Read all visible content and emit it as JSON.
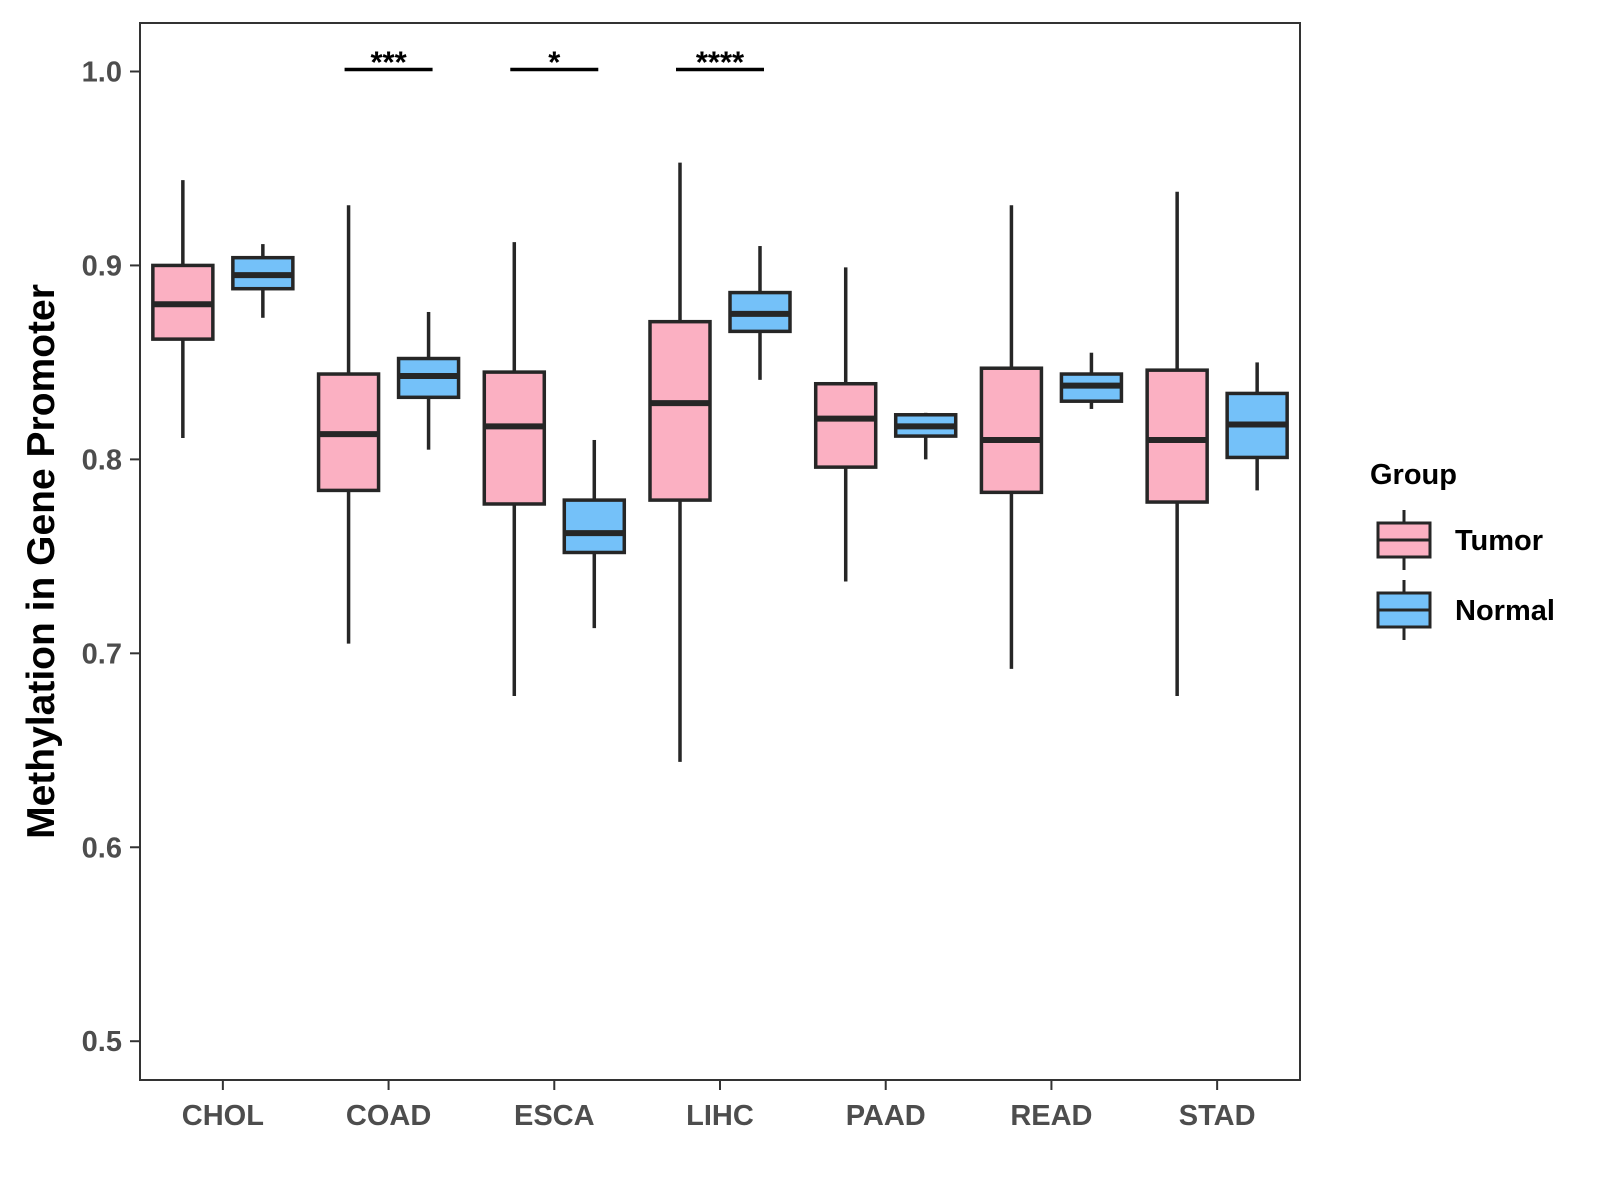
{
  "chart_data": {
    "type": "boxplot",
    "title": "",
    "xlabel": "",
    "ylabel": "Methylation in Gene Promoter",
    "ylim": [
      0.48,
      1.025
    ],
    "yticks": [
      "0.5",
      "0.6",
      "0.7",
      "0.8",
      "0.9",
      "1.0"
    ],
    "grid": false,
    "categories": [
      "CHOL",
      "COAD",
      "ESCA",
      "LIHC",
      "PAAD",
      "READ",
      "STAD"
    ],
    "legend": {
      "title": "Group",
      "position": "right",
      "entries": [
        "Tumor",
        "Normal"
      ]
    },
    "colors": {
      "Tumor": "#fbb0c2",
      "Normal": "#74c1f9",
      "outline": "#262626"
    },
    "series": [
      {
        "name": "Tumor",
        "boxes": [
          {
            "category": "CHOL",
            "min": 0.811,
            "q1": 0.862,
            "median": 0.88,
            "q3": 0.9,
            "max": 0.944
          },
          {
            "category": "COAD",
            "min": 0.705,
            "q1": 0.784,
            "median": 0.813,
            "q3": 0.844,
            "max": 0.931
          },
          {
            "category": "ESCA",
            "min": 0.678,
            "q1": 0.777,
            "median": 0.817,
            "q3": 0.845,
            "max": 0.912
          },
          {
            "category": "LIHC",
            "min": 0.644,
            "q1": 0.779,
            "median": 0.829,
            "q3": 0.871,
            "max": 0.953
          },
          {
            "category": "PAAD",
            "min": 0.737,
            "q1": 0.796,
            "median": 0.821,
            "q3": 0.839,
            "max": 0.899
          },
          {
            "category": "READ",
            "min": 0.692,
            "q1": 0.783,
            "median": 0.81,
            "q3": 0.847,
            "max": 0.931
          },
          {
            "category": "STAD",
            "min": 0.678,
            "q1": 0.778,
            "median": 0.81,
            "q3": 0.846,
            "max": 0.938
          }
        ]
      },
      {
        "name": "Normal",
        "boxes": [
          {
            "category": "CHOL",
            "min": 0.873,
            "q1": 0.888,
            "median": 0.895,
            "q3": 0.904,
            "max": 0.911
          },
          {
            "category": "COAD",
            "min": 0.805,
            "q1": 0.832,
            "median": 0.843,
            "q3": 0.852,
            "max": 0.876
          },
          {
            "category": "ESCA",
            "min": 0.713,
            "q1": 0.752,
            "median": 0.762,
            "q3": 0.779,
            "max": 0.81
          },
          {
            "category": "LIHC",
            "min": 0.841,
            "q1": 0.866,
            "median": 0.875,
            "q3": 0.886,
            "max": 0.91
          },
          {
            "category": "PAAD",
            "min": 0.8,
            "q1": 0.812,
            "median": 0.817,
            "q3": 0.823,
            "max": 0.824
          },
          {
            "category": "READ",
            "min": 0.826,
            "q1": 0.83,
            "median": 0.838,
            "q3": 0.844,
            "max": 0.855
          },
          {
            "category": "STAD",
            "min": 0.784,
            "q1": 0.801,
            "median": 0.818,
            "q3": 0.834,
            "max": 0.85
          }
        ]
      }
    ],
    "annotations": [
      {
        "category": "COAD",
        "label": "***",
        "y": 1.001
      },
      {
        "category": "ESCA",
        "label": "*",
        "y": 1.001
      },
      {
        "category": "LIHC",
        "label": "****",
        "y": 1.001
      }
    ]
  }
}
